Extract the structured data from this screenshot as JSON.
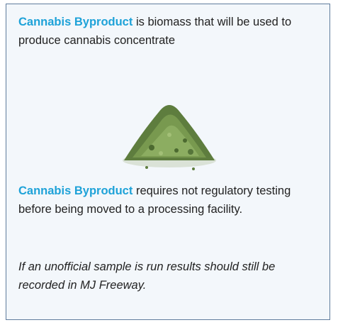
{
  "card": {
    "paragraph1": {
      "term": "Cannabis Byproduct",
      "text": "is biomass that will be used to produce cannabis concentrate"
    },
    "paragraph2": {
      "term": "Cannabis Byproduct",
      "text": "requires not regulatory testing before being moved to a processing facility."
    },
    "note": "If an unofficial sample is run results should still be recorded in MJ Freeway."
  }
}
